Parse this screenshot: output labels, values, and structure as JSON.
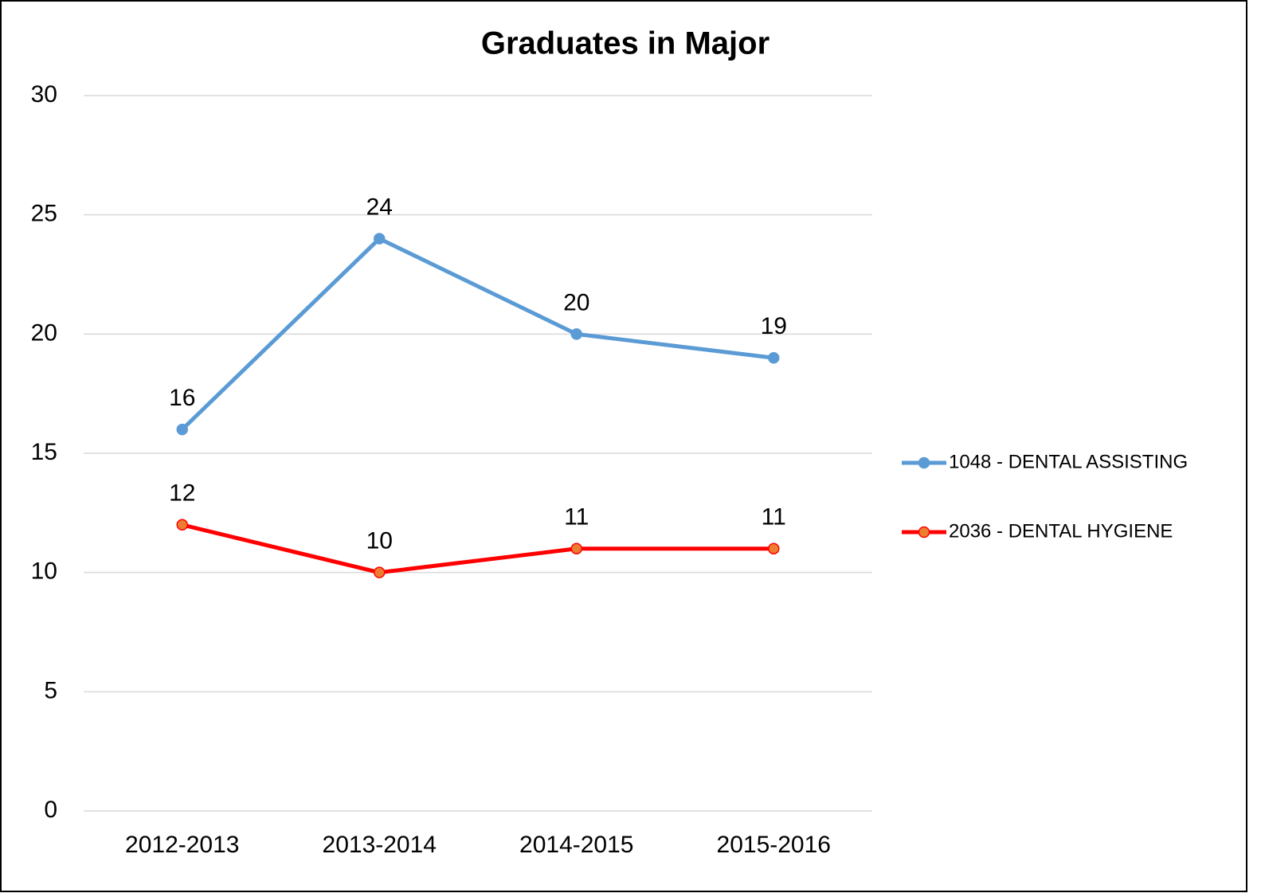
{
  "chart_data": {
    "type": "line",
    "title": "Graduates in Major",
    "categories": [
      "2012-2013",
      "2013-2014",
      "2014-2015",
      "2015-2016"
    ],
    "series": [
      {
        "name": "1048 - DENTAL ASSISTING",
        "color": "#5b9bd5",
        "marker_fill": "#5b9bd5",
        "values": [
          16,
          24,
          20,
          19
        ]
      },
      {
        "name": "2036 - DENTAL HYGIENE",
        "color": "#ff0000",
        "marker_fill": "#ed7d31",
        "values": [
          12,
          10,
          11,
          11
        ]
      }
    ],
    "ylim": [
      0,
      30
    ],
    "yticks": [
      0,
      5,
      10,
      15,
      20,
      25,
      30
    ],
    "grid": true,
    "legend": "right",
    "data_labels": true
  }
}
